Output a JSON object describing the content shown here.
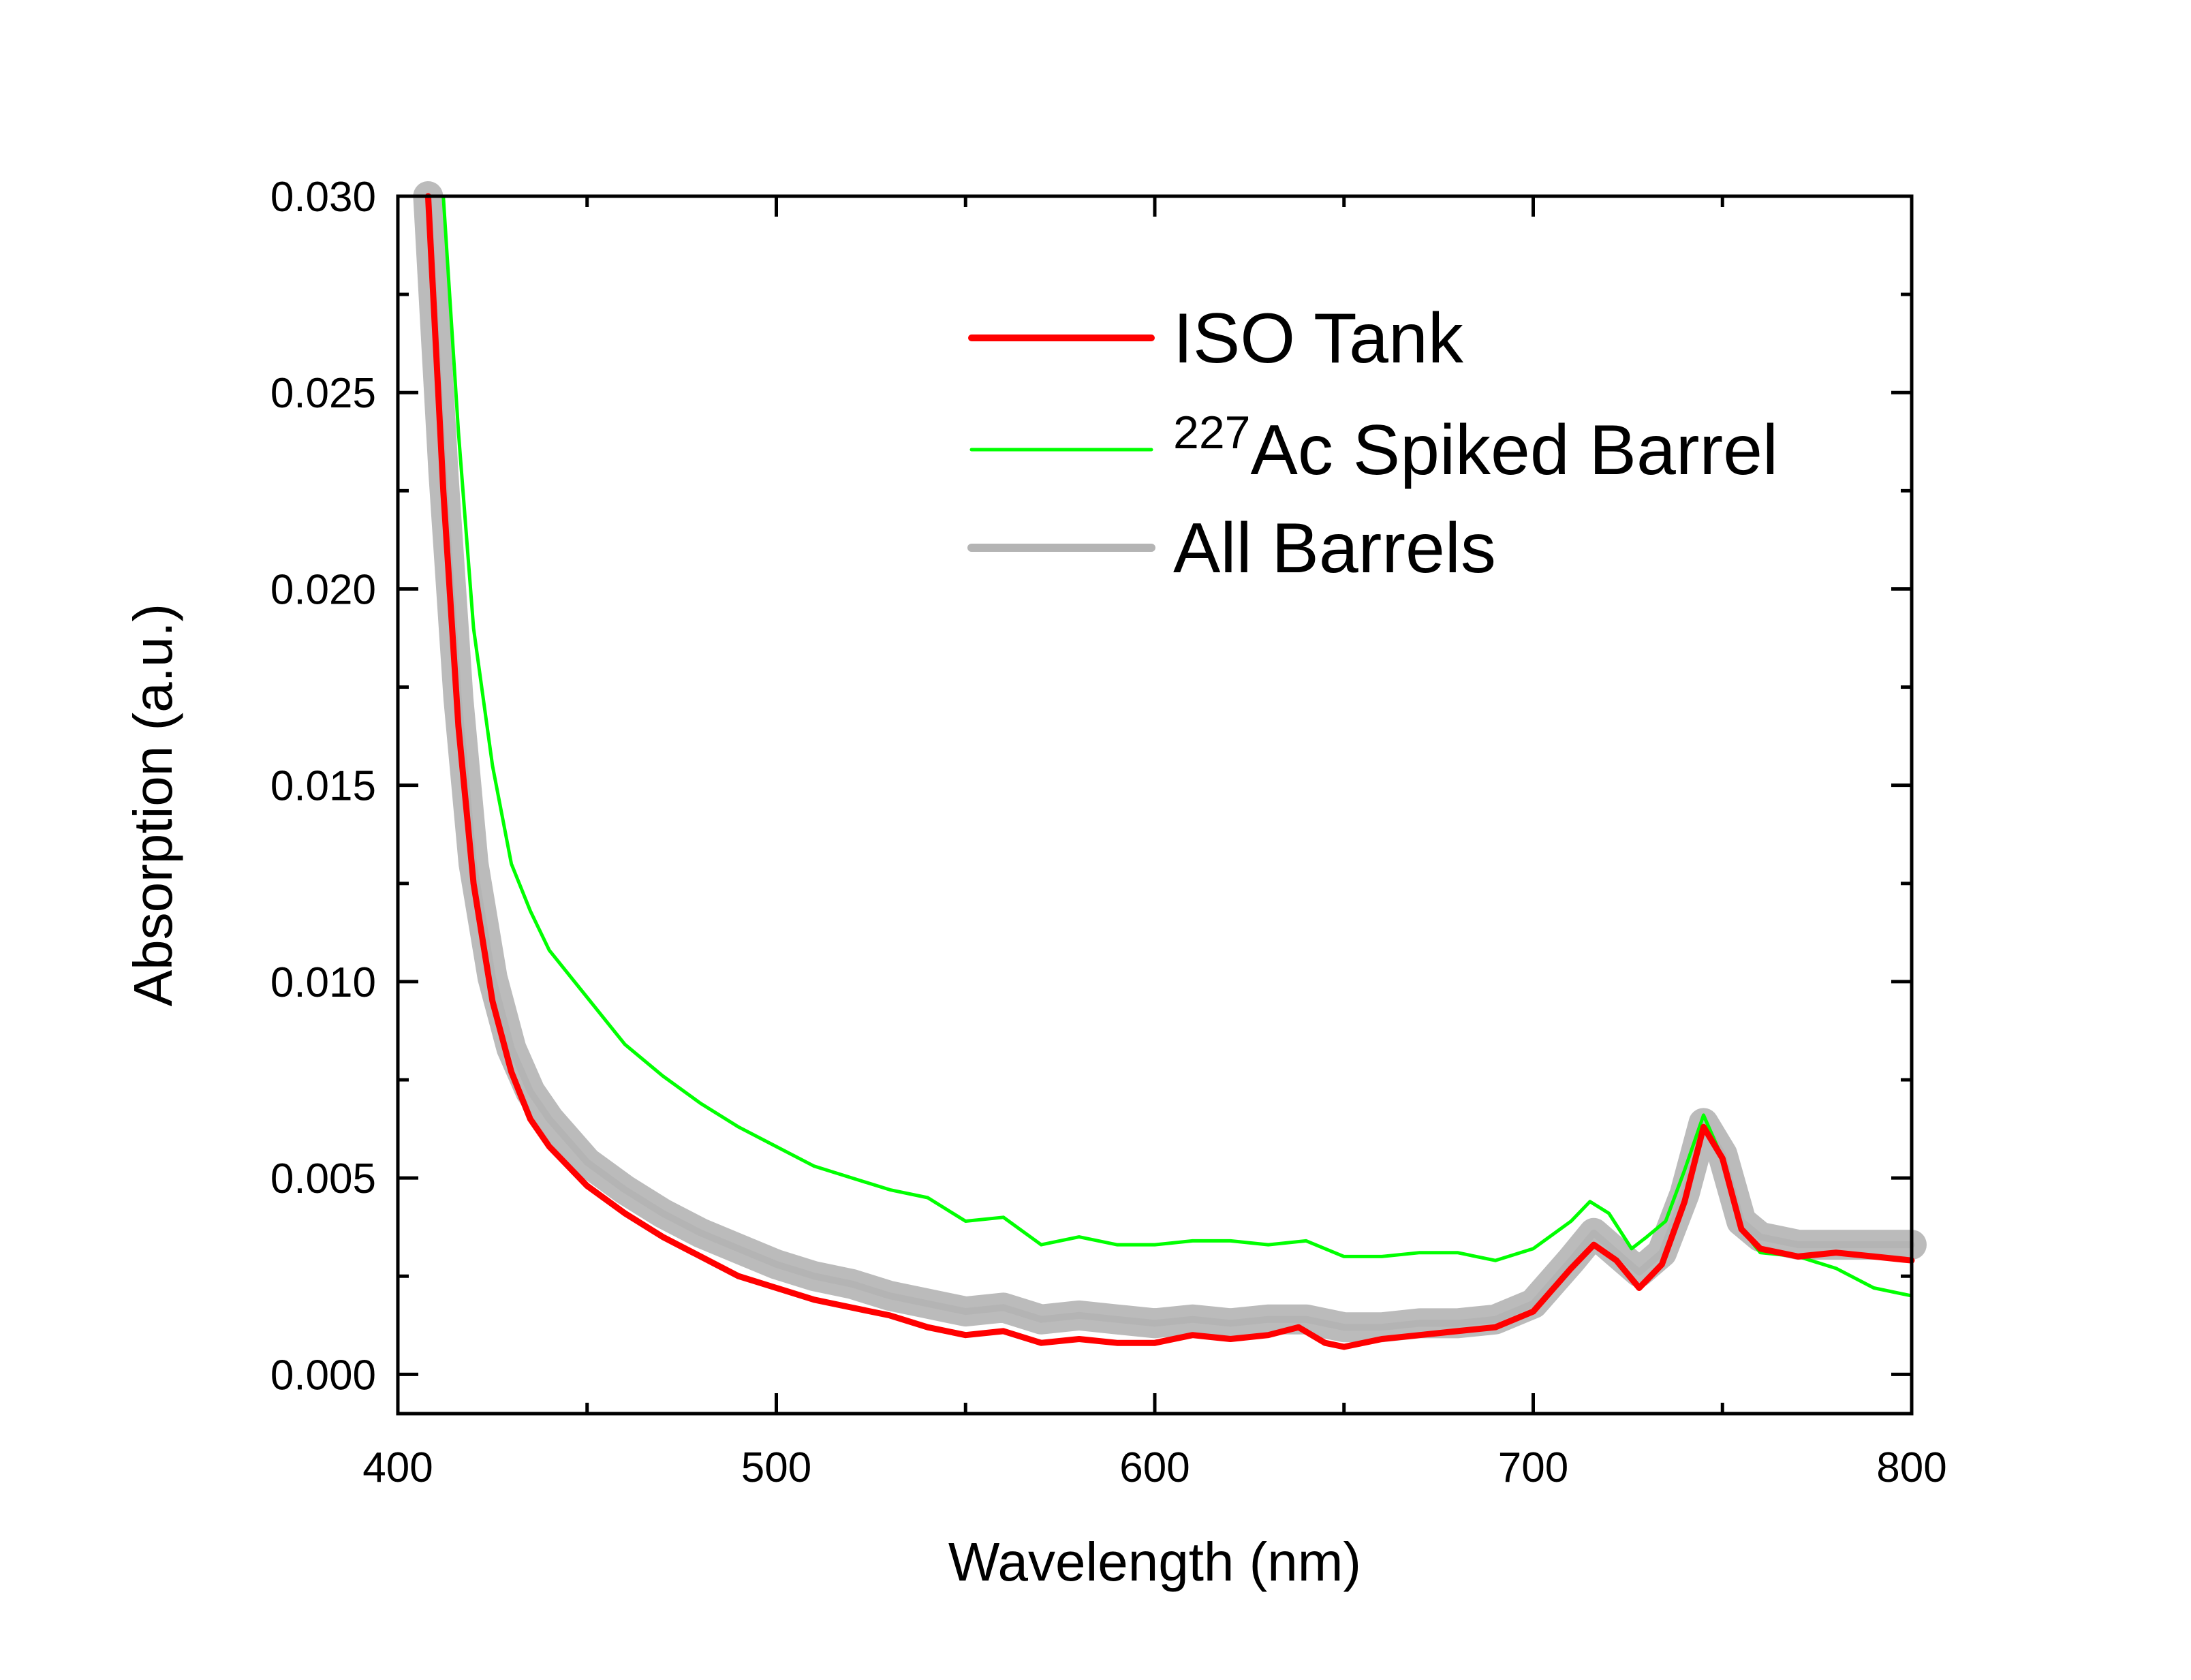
{
  "chart_data": {
    "type": "line",
    "title": "",
    "xlabel": "Wavelength (nm)",
    "ylabel": "Absorption (a.u.)",
    "xlim": [
      400,
      800
    ],
    "ylim": [
      -0.001,
      0.03
    ],
    "x_ticks": [
      "400",
      "500",
      "600",
      "700",
      "800"
    ],
    "y_ticks": [
      "0.000",
      "0.005",
      "0.010",
      "0.015",
      "0.020",
      "0.025",
      "0.030"
    ],
    "x_tick_values": [
      400,
      500,
      600,
      700,
      800
    ],
    "y_tick_values": [
      0,
      0.005,
      0.01,
      0.015,
      0.02,
      0.025,
      0.03
    ],
    "grid": false,
    "legend_position": "top-right",
    "series": [
      {
        "name": "ISO Tank",
        "color": "#ff0000",
        "points": [
          [
            408,
            0.0305
          ],
          [
            412,
            0.0225
          ],
          [
            416,
            0.0165
          ],
          [
            420,
            0.0125
          ],
          [
            425,
            0.0095
          ],
          [
            430,
            0.0077
          ],
          [
            435,
            0.0065
          ],
          [
            440,
            0.0058
          ],
          [
            450,
            0.0048
          ],
          [
            460,
            0.0041
          ],
          [
            470,
            0.0035
          ],
          [
            480,
            0.003
          ],
          [
            490,
            0.0025
          ],
          [
            500,
            0.0022
          ],
          [
            510,
            0.0019
          ],
          [
            520,
            0.0017
          ],
          [
            530,
            0.0015
          ],
          [
            540,
            0.0012
          ],
          [
            550,
            0.001
          ],
          [
            560,
            0.0011
          ],
          [
            570,
            0.0008
          ],
          [
            580,
            0.0009
          ],
          [
            590,
            0.0008
          ],
          [
            600,
            0.0008
          ],
          [
            610,
            0.001
          ],
          [
            620,
            0.0009
          ],
          [
            630,
            0.001
          ],
          [
            638,
            0.0012
          ],
          [
            645,
            0.0008
          ],
          [
            650,
            0.0007
          ],
          [
            660,
            0.0009
          ],
          [
            670,
            0.001
          ],
          [
            680,
            0.0011
          ],
          [
            690,
            0.0012
          ],
          [
            700,
            0.0016
          ],
          [
            710,
            0.0027
          ],
          [
            716,
            0.0033
          ],
          [
            722,
            0.0029
          ],
          [
            728,
            0.0022
          ],
          [
            734,
            0.0028
          ],
          [
            740,
            0.0044
          ],
          [
            745,
            0.0063
          ],
          [
            750,
            0.0055
          ],
          [
            755,
            0.0037
          ],
          [
            760,
            0.0032
          ],
          [
            770,
            0.003
          ],
          [
            780,
            0.0031
          ],
          [
            790,
            0.003
          ],
          [
            800,
            0.0029
          ]
        ]
      },
      {
        "name": "227Ac Spiked Barrel",
        "color": "#00ff00",
        "points": [
          [
            412,
            0.0305
          ],
          [
            416,
            0.024
          ],
          [
            420,
            0.019
          ],
          [
            425,
            0.0155
          ],
          [
            430,
            0.013
          ],
          [
            435,
            0.0118
          ],
          [
            440,
            0.0108
          ],
          [
            450,
            0.0096
          ],
          [
            460,
            0.0084
          ],
          [
            470,
            0.0076
          ],
          [
            480,
            0.0069
          ],
          [
            490,
            0.0063
          ],
          [
            500,
            0.0058
          ],
          [
            510,
            0.0053
          ],
          [
            520,
            0.005
          ],
          [
            530,
            0.0047
          ],
          [
            540,
            0.0045
          ],
          [
            550,
            0.0039
          ],
          [
            560,
            0.004
          ],
          [
            570,
            0.0033
          ],
          [
            580,
            0.0035
          ],
          [
            590,
            0.0033
          ],
          [
            600,
            0.0033
          ],
          [
            610,
            0.0034
          ],
          [
            620,
            0.0034
          ],
          [
            630,
            0.0033
          ],
          [
            640,
            0.0034
          ],
          [
            650,
            0.003
          ],
          [
            660,
            0.003
          ],
          [
            670,
            0.0031
          ],
          [
            680,
            0.0031
          ],
          [
            690,
            0.0029
          ],
          [
            700,
            0.0032
          ],
          [
            710,
            0.0039
          ],
          [
            715,
            0.0044
          ],
          [
            720,
            0.0041
          ],
          [
            726,
            0.0032
          ],
          [
            730,
            0.0035
          ],
          [
            735,
            0.0039
          ],
          [
            740,
            0.0052
          ],
          [
            745,
            0.0066
          ],
          [
            750,
            0.0055
          ],
          [
            755,
            0.0037
          ],
          [
            760,
            0.0031
          ],
          [
            770,
            0.003
          ],
          [
            780,
            0.0027
          ],
          [
            790,
            0.0022
          ],
          [
            800,
            0.002
          ]
        ]
      },
      {
        "name": "All Barrels",
        "color": "#b4b4b4",
        "points": [
          [
            408,
            0.0305
          ],
          [
            412,
            0.023
          ],
          [
            416,
            0.0172
          ],
          [
            420,
            0.013
          ],
          [
            425,
            0.0101
          ],
          [
            430,
            0.0083
          ],
          [
            435,
            0.0072
          ],
          [
            440,
            0.0065
          ],
          [
            450,
            0.0054
          ],
          [
            460,
            0.0047
          ],
          [
            470,
            0.0041
          ],
          [
            480,
            0.0036
          ],
          [
            490,
            0.0032
          ],
          [
            500,
            0.0028
          ],
          [
            510,
            0.0025
          ],
          [
            520,
            0.0023
          ],
          [
            530,
            0.002
          ],
          [
            540,
            0.0018
          ],
          [
            550,
            0.0016
          ],
          [
            560,
            0.0017
          ],
          [
            570,
            0.0014
          ],
          [
            580,
            0.0015
          ],
          [
            590,
            0.0014
          ],
          [
            600,
            0.0013
          ],
          [
            610,
            0.0014
          ],
          [
            620,
            0.0013
          ],
          [
            630,
            0.0014
          ],
          [
            640,
            0.0014
          ],
          [
            650,
            0.0012
          ],
          [
            660,
            0.0012
          ],
          [
            670,
            0.0013
          ],
          [
            680,
            0.0013
          ],
          [
            690,
            0.0014
          ],
          [
            700,
            0.0018
          ],
          [
            710,
            0.0029
          ],
          [
            716,
            0.0036
          ],
          [
            722,
            0.0031
          ],
          [
            728,
            0.0026
          ],
          [
            734,
            0.0031
          ],
          [
            740,
            0.0046
          ],
          [
            745,
            0.0064
          ],
          [
            750,
            0.0056
          ],
          [
            755,
            0.0039
          ],
          [
            760,
            0.0035
          ],
          [
            770,
            0.0033
          ],
          [
            780,
            0.0033
          ],
          [
            790,
            0.0033
          ],
          [
            800,
            0.0033
          ]
        ]
      }
    ],
    "legend": [
      {
        "label": "ISO Tank",
        "color": "#ff0000",
        "sup": ""
      },
      {
        "label": "Ac Spiked Barrel",
        "color": "#00ff00",
        "sup": "227"
      },
      {
        "label": "All Barrels",
        "color": "#b4b4b4",
        "sup": ""
      }
    ]
  }
}
